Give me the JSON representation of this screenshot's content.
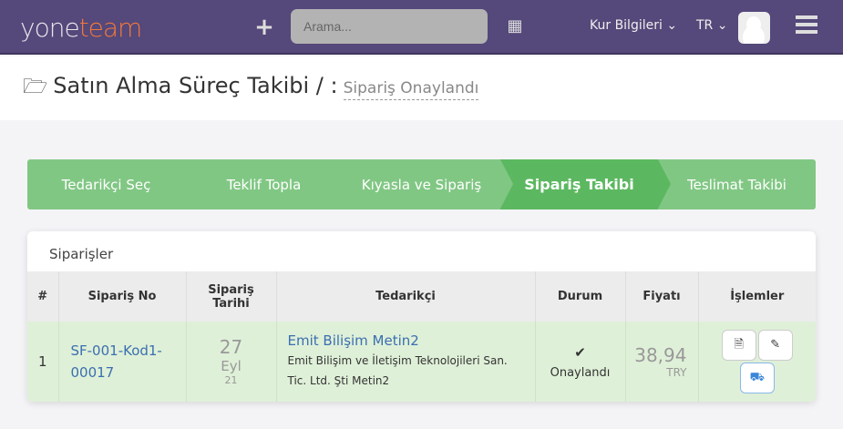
{
  "header": {
    "logo_a": "yone",
    "logo_b": "team",
    "search_placeholder": "Arama...",
    "currency": "Kur Bilgileri ⌄",
    "lang": "TR ⌄"
  },
  "page": {
    "title": "Satın Alma Süreç Takibi / :",
    "status": "Sipariş Onaylandı"
  },
  "steps": [
    "Tedarikçi Seç",
    "Teklif Topla",
    "Kıyasla ve Sipariş",
    "Sipariş Takibi",
    "Teslimat Takibi"
  ],
  "active_step": "Sipariş Takibi",
  "orders": {
    "title": "Siparişler",
    "columns": [
      "#",
      "Sipariş No",
      "Sipariş Tarihi",
      "Tedarikçi",
      "Durum",
      "Fiyatı",
      "İşlemler"
    ],
    "rows": [
      {
        "index": "1",
        "no_a": "SF-001-Kod1-",
        "no_b": "00017",
        "day": "27",
        "month": "Eyl",
        "year": "21",
        "supplier": "Emit Bilişim Metin2",
        "supplier_full": "Emit Bilişim ve İletişim Teknolojileri San. Tic. Ltd. Şti Metin2",
        "status": "Onaylandı",
        "price": "38,94",
        "currency": "TRY"
      }
    ]
  }
}
